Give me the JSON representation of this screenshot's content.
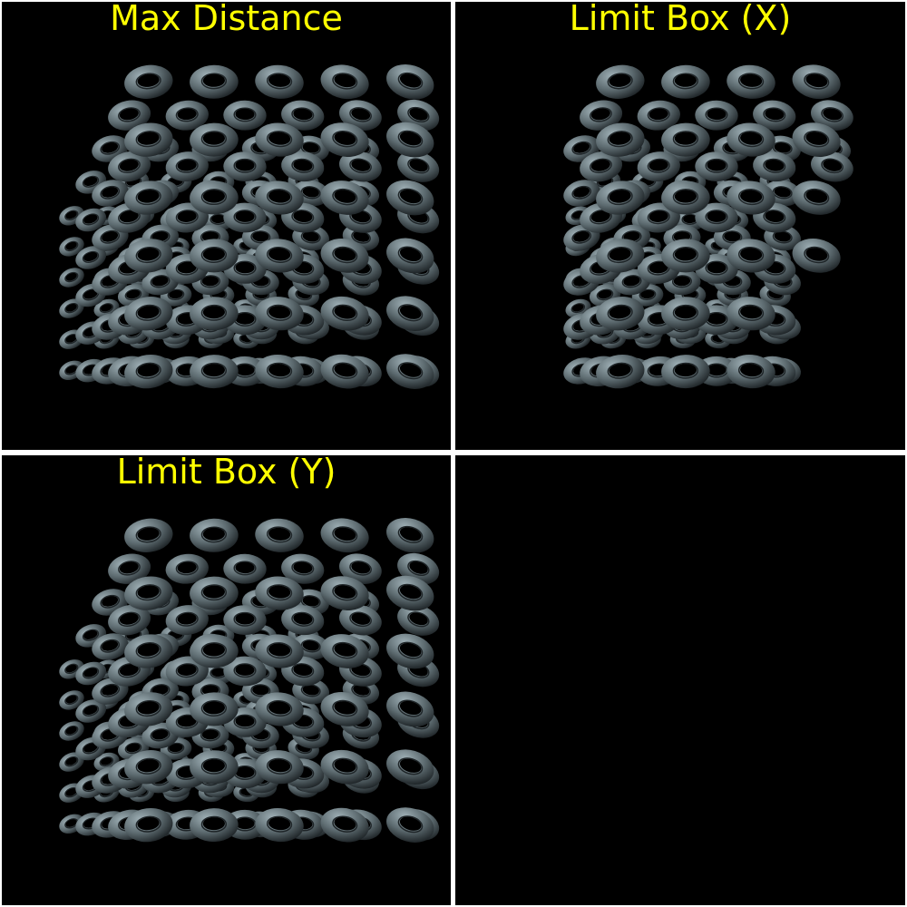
{
  "viewports": [
    {
      "title": "Max Distance",
      "clip": "none"
    },
    {
      "title": "Limit Box (X)",
      "clip": "x"
    },
    {
      "title": "Limit Box (Y)",
      "clip": "y"
    },
    {
      "title": "",
      "clip": "empty"
    }
  ],
  "colors": {
    "background": "#000000",
    "divider": "#ffffff",
    "title": "#ffff00",
    "torus_light": "#9fb0b6",
    "torus_mid": "#5d6b70",
    "torus_dark": "#1e2427"
  },
  "icons": {
    "torus": "torus-shape"
  }
}
